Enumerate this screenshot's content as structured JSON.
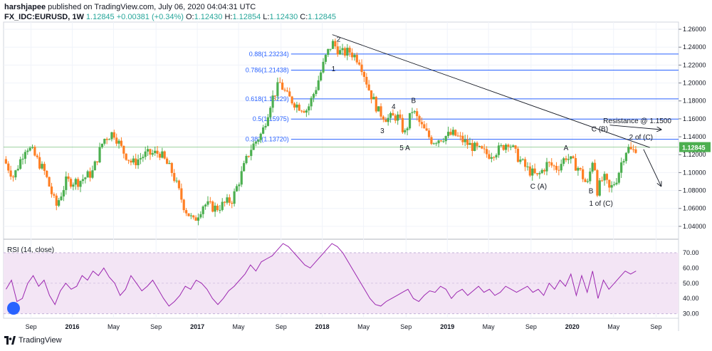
{
  "header": {
    "author": "harshjapee",
    "published_text": "published on TradingView.com, July 06, 2020 04:04:31 UTC",
    "symbol": "FX_IDC:EURUSD, 1W",
    "last": "1.12845",
    "change": "+0.00381 (+0.34%)",
    "o_label": "O:",
    "o_value": "1.12430",
    "h_label": "H:",
    "h_value": "1.12854",
    "l_label": "L:",
    "l_value": "1.12430",
    "c_label": "C:",
    "c_value": "1.12845"
  },
  "footer": {
    "brand": "TradingView"
  },
  "chart_data": [
    {
      "type": "candlestick",
      "symbol": "FX_IDC:EURUSD",
      "interval": "1W",
      "ylim": [
        1.028,
        1.268
      ],
      "y_ticks": [
        "1.26000",
        "1.24000",
        "1.22000",
        "1.20000",
        "1.18000",
        "1.16000",
        "1.14000",
        "1.12000",
        "1.10000",
        "1.08000",
        "1.06000",
        "1.04000"
      ],
      "last_price_label": "1.12845",
      "x_ticks": [
        "Sep",
        "2016",
        "May",
        "Sep",
        "2017",
        "May",
        "Sep",
        "2018",
        "May",
        "Sep",
        "2019",
        "May",
        "Sep",
        "2020",
        "May",
        "Sep"
      ],
      "x_tick_times": [
        2015.67,
        2016.0,
        2016.33,
        2016.67,
        2017.0,
        2017.33,
        2017.67,
        2018.0,
        2018.33,
        2018.67,
        2019.0,
        2019.33,
        2019.67,
        2020.0,
        2020.33,
        2020.67
      ],
      "x_range": [
        2015.45,
        2020.85
      ],
      "last_candle_time": 2020.51,
      "close_path": [
        {
          "t": 2015.45,
          "p": 1.115
        },
        {
          "t": 2015.53,
          "p": 1.095
        },
        {
          "t": 2015.63,
          "p": 1.13
        },
        {
          "t": 2015.68,
          "p": 1.123
        },
        {
          "t": 2015.78,
          "p": 1.1
        },
        {
          "t": 2015.87,
          "p": 1.062
        },
        {
          "t": 2015.95,
          "p": 1.09
        },
        {
          "t": 2016.05,
          "p": 1.09
        },
        {
          "t": 2016.16,
          "p": 1.1
        },
        {
          "t": 2016.25,
          "p": 1.137
        },
        {
          "t": 2016.33,
          "p": 1.145
        },
        {
          "t": 2016.4,
          "p": 1.125
        },
        {
          "t": 2016.48,
          "p": 1.11
        },
        {
          "t": 2016.58,
          "p": 1.12
        },
        {
          "t": 2016.7,
          "p": 1.122
        },
        {
          "t": 2016.8,
          "p": 1.1
        },
        {
          "t": 2016.9,
          "p": 1.06
        },
        {
          "t": 2016.97,
          "p": 1.045
        },
        {
          "t": 2017.05,
          "p": 1.065
        },
        {
          "t": 2017.15,
          "p": 1.06
        },
        {
          "t": 2017.28,
          "p": 1.07
        },
        {
          "t": 2017.34,
          "p": 1.093
        },
        {
          "t": 2017.42,
          "p": 1.125
        },
        {
          "t": 2017.52,
          "p": 1.145
        },
        {
          "t": 2017.59,
          "p": 1.18
        },
        {
          "t": 2017.66,
          "p": 1.2
        },
        {
          "t": 2017.72,
          "p": 1.185
        },
        {
          "t": 2017.8,
          "p": 1.175
        },
        {
          "t": 2017.88,
          "p": 1.17
        },
        {
          "t": 2017.95,
          "p": 1.195
        },
        {
          "t": 2018.03,
          "p": 1.23
        },
        {
          "t": 2018.08,
          "p": 1.245
        },
        {
          "t": 2018.15,
          "p": 1.233
        },
        {
          "t": 2018.22,
          "p": 1.235
        },
        {
          "t": 2018.3,
          "p": 1.225
        },
        {
          "t": 2018.38,
          "p": 1.19
        },
        {
          "t": 2018.45,
          "p": 1.168
        },
        {
          "t": 2018.52,
          "p": 1.16
        },
        {
          "t": 2018.6,
          "p": 1.163
        },
        {
          "t": 2018.66,
          "p": 1.143
        },
        {
          "t": 2018.72,
          "p": 1.17
        },
        {
          "t": 2018.8,
          "p": 1.15
        },
        {
          "t": 2018.88,
          "p": 1.135
        },
        {
          "t": 2018.97,
          "p": 1.14
        },
        {
          "t": 2019.05,
          "p": 1.143
        },
        {
          "t": 2019.15,
          "p": 1.133
        },
        {
          "t": 2019.25,
          "p": 1.125
        },
        {
          "t": 2019.33,
          "p": 1.12
        },
        {
          "t": 2019.42,
          "p": 1.126
        },
        {
          "t": 2019.49,
          "p": 1.135
        },
        {
          "t": 2019.55,
          "p": 1.12
        },
        {
          "t": 2019.63,
          "p": 1.105
        },
        {
          "t": 2019.72,
          "p": 1.095
        },
        {
          "t": 2019.8,
          "p": 1.11
        },
        {
          "t": 2019.88,
          "p": 1.105
        },
        {
          "t": 2019.95,
          "p": 1.118
        },
        {
          "t": 2020.05,
          "p": 1.105
        },
        {
          "t": 2020.12,
          "p": 1.085
        },
        {
          "t": 2020.17,
          "p": 1.12
        },
        {
          "t": 2020.2,
          "p": 1.08
        },
        {
          "t": 2020.25,
          "p": 1.095
        },
        {
          "t": 2020.3,
          "p": 1.08
        },
        {
          "t": 2020.36,
          "p": 1.095
        },
        {
          "t": 2020.4,
          "p": 1.115
        },
        {
          "t": 2020.44,
          "p": 1.128
        },
        {
          "t": 2020.48,
          "p": 1.123
        },
        {
          "t": 2020.51,
          "p": 1.128
        }
      ],
      "fib_levels": [
        {
          "label": "0.88(1.23234)",
          "value": 1.23234
        },
        {
          "label": "0.786(1.21438)",
          "value": 1.21438
        },
        {
          "label": "0.618(1.18229)",
          "value": 1.18229
        },
        {
          "label": "0.5(1.15975)",
          "value": 1.15975
        },
        {
          "label": "0.382(1.13720)",
          "value": 1.1372
        }
      ],
      "horizontal_line": 1.12845,
      "trendline": [
        {
          "t": 2018.08,
          "p": 1.254
        },
        {
          "t": 2020.62,
          "p": 1.128
        }
      ],
      "annotations": [
        {
          "text": "1",
          "t": 2018.09,
          "p": 1.213
        },
        {
          "text": "2",
          "t": 2018.13,
          "p": 1.246
        },
        {
          "text": "3",
          "t": 2018.48,
          "p": 1.144
        },
        {
          "text": "4",
          "t": 2018.57,
          "p": 1.171
        },
        {
          "text": "B",
          "t": 2018.73,
          "p": 1.178
        },
        {
          "text": "5 A",
          "t": 2018.66,
          "p": 1.125
        },
        {
          "text": "C (A)",
          "t": 2019.73,
          "p": 1.082
        },
        {
          "text": "A",
          "t": 2019.95,
          "p": 1.125
        },
        {
          "text": "B",
          "t": 2020.15,
          "p": 1.077
        },
        {
          "text": "1 of (C)",
          "t": 2020.23,
          "p": 1.063
        },
        {
          "text": "C (B)",
          "t": 2020.22,
          "p": 1.146
        },
        {
          "text": "2 of (C)",
          "t": 2020.55,
          "p": 1.137
        },
        {
          "text": "Resistance @ 1.1500",
          "t": 2020.52,
          "p": 1.155
        }
      ],
      "arrows": [
        {
          "from": {
            "t": 2020.3,
            "p": 1.153
          },
          "to": {
            "t": 2020.71,
            "p": 1.148
          }
        },
        {
          "from": {
            "t": 2020.57,
            "p": 1.126
          },
          "to": {
            "t": 2020.71,
            "p": 1.085
          }
        }
      ]
    },
    {
      "type": "line",
      "title": "RSI (14, close)",
      "ylim": [
        27,
        77
      ],
      "y_ticks": [
        "70.00",
        "60.00",
        "50.00",
        "40.00",
        "30.00"
      ],
      "overbought": 70,
      "oversold": 30,
      "series": [
        {
          "values": [
            46,
            52,
            38,
            40,
            50,
            55,
            48,
            52,
            42,
            36,
            45,
            50,
            46,
            48,
            55,
            52,
            58,
            55,
            60,
            54,
            50,
            42,
            46,
            55,
            50,
            45,
            48,
            52,
            46,
            40,
            35,
            38,
            42,
            48,
            46,
            52,
            50,
            46,
            40,
            36,
            40,
            45,
            48,
            52,
            56,
            62,
            58,
            64,
            66,
            68,
            72,
            76,
            74,
            70,
            66,
            62,
            60,
            64,
            68,
            72,
            76,
            74,
            70,
            64,
            58,
            52,
            46,
            40,
            36,
            35,
            38,
            40,
            42,
            44,
            46,
            40,
            38,
            42,
            45,
            44,
            48,
            46,
            40,
            44,
            46,
            42,
            45,
            48,
            44,
            46,
            42,
            44,
            48,
            46,
            44,
            46,
            48,
            44,
            46,
            42,
            50,
            46,
            52,
            48,
            56,
            42,
            55,
            44,
            58,
            40,
            52,
            46,
            50,
            54,
            58,
            56,
            58
          ]
        }
      ]
    }
  ]
}
